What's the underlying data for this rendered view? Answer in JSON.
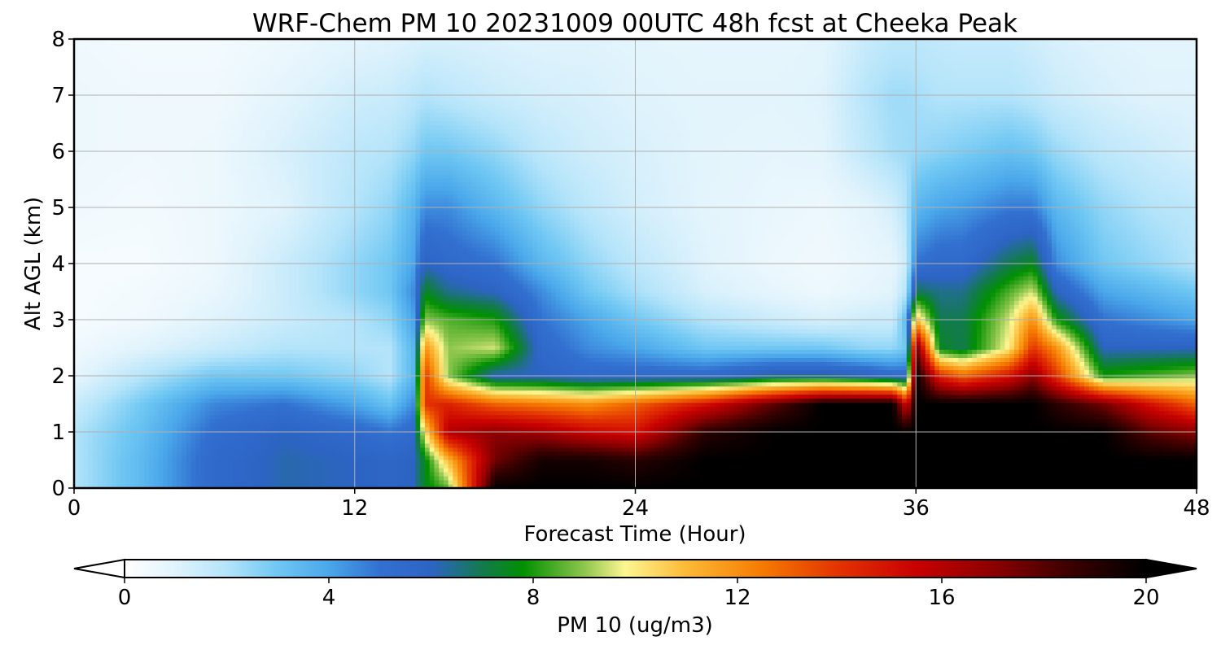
{
  "chart_data": {
    "type": "heatmap",
    "title": "WRF-Chem PM 10  20231009 00UTC 48h fcst at Cheeka Peak",
    "xlabel": "Forecast Time (Hour)",
    "ylabel": "Alt AGL (km)",
    "xlim": [
      0,
      48
    ],
    "ylim": [
      0,
      8
    ],
    "xticks": [
      "0",
      "12",
      "24",
      "36",
      "48"
    ],
    "yticks": [
      "0",
      "1",
      "2",
      "3",
      "4",
      "5",
      "6",
      "7",
      "8"
    ],
    "grid": true,
    "colorbar": {
      "label": "PM 10  (ug/m3)",
      "range": [
        0,
        20
      ],
      "ticks": [
        "0",
        "4",
        "8",
        "12",
        "16",
        "20"
      ],
      "extend": "both",
      "stops": [
        {
          "v": 0,
          "c": "#ffffff"
        },
        {
          "v": 1,
          "c": "#e0f3fc"
        },
        {
          "v": 2,
          "c": "#b4e4fa"
        },
        {
          "v": 3,
          "c": "#6fc7f3"
        },
        {
          "v": 4,
          "c": "#4aa7ea"
        },
        {
          "v": 5,
          "c": "#3270d0"
        },
        {
          "v": 6,
          "c": "#2d64c4"
        },
        {
          "v": 7,
          "c": "#137a4e"
        },
        {
          "v": 7.8,
          "c": "#019001"
        },
        {
          "v": 9,
          "c": "#8ec64d"
        },
        {
          "v": 9.8,
          "c": "#fdf691"
        },
        {
          "v": 11,
          "c": "#fdb936"
        },
        {
          "v": 12.5,
          "c": "#f57a00"
        },
        {
          "v": 14,
          "c": "#e23200"
        },
        {
          "v": 15.5,
          "c": "#c80000"
        },
        {
          "v": 17,
          "c": "#8c0000"
        },
        {
          "v": 18.5,
          "c": "#3c0000"
        },
        {
          "v": 20,
          "c": "#000000"
        }
      ]
    },
    "times_h": [
      0,
      3,
      6,
      9,
      12,
      13.5,
      14.5,
      15,
      16,
      18,
      20,
      22,
      24,
      27,
      30,
      32,
      34,
      35,
      35.6,
      36,
      37,
      38,
      40,
      41,
      42,
      44,
      46,
      48
    ],
    "alts_km": [
      0,
      0.5,
      1,
      1.5,
      2,
      2.5,
      3,
      3.5,
      4,
      5,
      6,
      7,
      8
    ],
    "values": [
      [
        2.0,
        3.5,
        5.5,
        6.2,
        6.0,
        5.8,
        6.0,
        7.5,
        8.5,
        20,
        20,
        20,
        20,
        20,
        20,
        20,
        20,
        20,
        20,
        20,
        20,
        20,
        20,
        20,
        20,
        20,
        20,
        20
      ],
      [
        2.0,
        3.5,
        5.5,
        6.2,
        6.0,
        5.8,
        6.0,
        7.5,
        11,
        17.5,
        19.5,
        19.5,
        19,
        20,
        20,
        20,
        20,
        20,
        20,
        20,
        20,
        20,
        20,
        20,
        20,
        20,
        20,
        20
      ],
      [
        2.0,
        3.3,
        5.2,
        6.0,
        5.5,
        5.0,
        5.5,
        10,
        16,
        17,
        16.5,
        15.5,
        15,
        19,
        20,
        20,
        20,
        20,
        20,
        20,
        20,
        20,
        20,
        20,
        20,
        20,
        18,
        17
      ],
      [
        1.5,
        3.0,
        4.6,
        5.0,
        4.0,
        3.2,
        4.5,
        14,
        14.5,
        13,
        12.5,
        12,
        13,
        15,
        18,
        20,
        20,
        20,
        15,
        20,
        20,
        20,
        20,
        20,
        19,
        17.5,
        15,
        13
      ],
      [
        0.8,
        2.0,
        3.0,
        3.0,
        2.5,
        2.0,
        3.5,
        14,
        9.0,
        6.0,
        6.0,
        5.5,
        5.5,
        5.5,
        6.5,
        6.5,
        6.0,
        5.5,
        5.5,
        20,
        14.5,
        13,
        15,
        17,
        14,
        8,
        8.5,
        9
      ],
      [
        0.5,
        1.0,
        1.5,
        2.0,
        2.0,
        2.0,
        3.5,
        12,
        9.0,
        9.5,
        5.5,
        4.5,
        4.0,
        3.0,
        3.0,
        3.0,
        2.5,
        2.5,
        3.0,
        18,
        7.5,
        7,
        10,
        14,
        12,
        6,
        6.0,
        6
      ],
      [
        0.3,
        0.5,
        1.0,
        1.5,
        2.0,
        2.5,
        4.0,
        9.0,
        8.5,
        8.0,
        5.0,
        4.0,
        3.0,
        2.0,
        1.5,
        1.2,
        1.5,
        1.5,
        3.5,
        11,
        7.0,
        7,
        9.5,
        12,
        8,
        5,
        4.5,
        4
      ],
      [
        0.3,
        0.4,
        0.7,
        1.5,
        2.5,
        3.0,
        4.5,
        7.5,
        6.5,
        6.0,
        4.5,
        3.0,
        2.2,
        1.2,
        0.8,
        0.6,
        0.8,
        1.0,
        2.0,
        7,
        6.5,
        6.5,
        8.5,
        9.5,
        6,
        4,
        3.5,
        3
      ],
      [
        0.3,
        0.3,
        0.6,
        1.5,
        2.5,
        3.0,
        4.0,
        6.0,
        5.5,
        5.0,
        3.5,
        2.5,
        1.8,
        1.0,
        0.6,
        0.5,
        0.7,
        0.8,
        1.5,
        5,
        5.5,
        5.5,
        7.0,
        7.5,
        4.5,
        3,
        2.5,
        2
      ],
      [
        0.5,
        0.4,
        0.6,
        1.0,
        2.0,
        2.5,
        3.5,
        4.5,
        4.5,
        3.5,
        2.5,
        1.8,
        1.3,
        0.9,
        0.7,
        0.6,
        0.9,
        1.3,
        2.0,
        3.5,
        4.0,
        4.2,
        4.8,
        4.8,
        3.5,
        2.5,
        2.0,
        1.8
      ],
      [
        0.6,
        0.5,
        0.6,
        1.2,
        1.8,
        2.0,
        2.5,
        3.0,
        3.0,
        2.5,
        1.8,
        1.4,
        1.2,
        0.9,
        0.8,
        0.9,
        1.8,
        2.2,
        2.3,
        2.4,
        2.6,
        2.8,
        3.2,
        3.0,
        2.4,
        1.8,
        1.5,
        1.2
      ],
      [
        0.6,
        0.5,
        0.5,
        0.9,
        1.4,
        1.5,
        1.8,
        2.0,
        1.8,
        1.5,
        1.3,
        1.2,
        1.0,
        0.9,
        0.9,
        1.0,
        2.0,
        2.3,
        2.3,
        2.2,
        2.0,
        2.0,
        2.0,
        1.8,
        1.5,
        1.2,
        1.0,
        1.0
      ],
      [
        0.5,
        0.4,
        0.4,
        0.6,
        0.9,
        1.0,
        1.1,
        1.2,
        1.2,
        1.1,
        1.0,
        1.0,
        0.9,
        0.8,
        0.8,
        0.9,
        1.6,
        1.8,
        1.8,
        1.8,
        1.7,
        1.6,
        1.6,
        1.4,
        1.2,
        1.0,
        0.9,
        0.9
      ]
    ]
  }
}
